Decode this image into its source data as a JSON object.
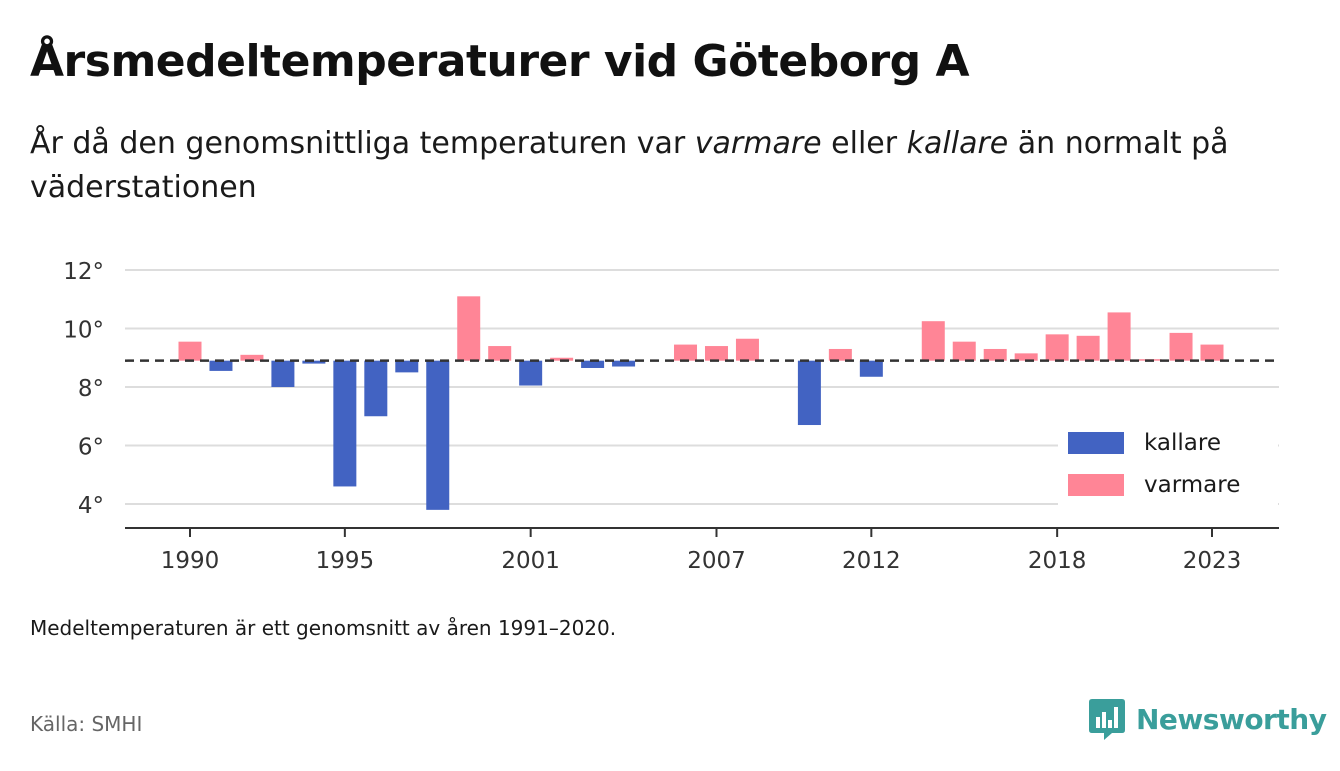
{
  "title": "Årsmedeltemperaturer vid Göteborg A",
  "subtitle": {
    "part1": "År då den genomsnittliga temperaturen var ",
    "warm_word": "varmare",
    "part2": " eller ",
    "cold_word": "kallare",
    "part3": " än normalt på väderstationen"
  },
  "note": "Medeltemperaturen är ett genomsnitt av åren 1991–2020.",
  "source": "Källa: SMHI",
  "logo_text": "Newsworthy",
  "colors": {
    "kallare": "#4263c2",
    "varmare": "#ff8596",
    "baseline": "#333333",
    "grid": "#dddddd",
    "logo": "#3a9e9b"
  },
  "chart_data": {
    "type": "bar",
    "title": "Årsmedeltemperaturer vid Göteborg A",
    "xlabel": "",
    "ylabel": "",
    "baseline": 8.9,
    "ylim": [
      3.2,
      12.5
    ],
    "yticks": [
      4,
      6,
      8,
      10,
      12
    ],
    "ytick_suffix": "°",
    "xticks": [
      1990,
      1995,
      2001,
      2007,
      2012,
      2018,
      2023
    ],
    "grid": true,
    "legend_position": "bottom-right",
    "legend": [
      {
        "name": "kallare",
        "color": "#4263c2"
      },
      {
        "name": "varmare",
        "color": "#ff8596"
      }
    ],
    "x": [
      1990,
      1991,
      1992,
      1993,
      1994,
      1995,
      1996,
      1997,
      1998,
      1999,
      2000,
      2001,
      2002,
      2003,
      2004,
      2005,
      2006,
      2007,
      2008,
      2009,
      2010,
      2011,
      2012,
      2013,
      2014,
      2015,
      2016,
      2017,
      2018,
      2019,
      2020,
      2021,
      2022,
      2023
    ],
    "values": [
      9.55,
      8.55,
      9.1,
      8.0,
      8.8,
      4.6,
      7.0,
      8.5,
      3.8,
      11.1,
      9.4,
      8.05,
      9.0,
      8.65,
      8.7,
      8.9,
      9.45,
      9.4,
      9.65,
      8.9,
      6.7,
      9.3,
      8.35,
      8.9,
      10.25,
      9.55,
      9.3,
      9.15,
      9.8,
      9.75,
      10.55,
      8.95,
      9.85,
      9.45
    ]
  }
}
